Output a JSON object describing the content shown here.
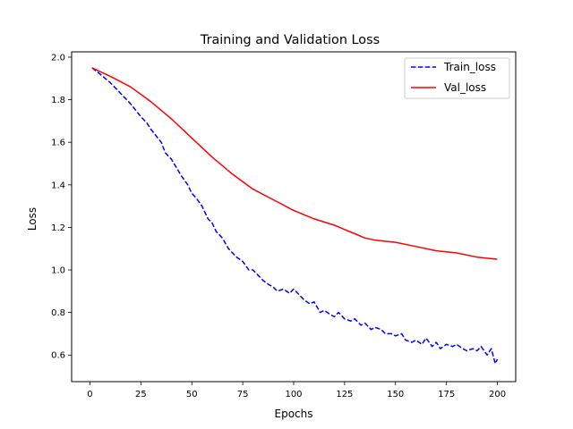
{
  "chart_data": {
    "type": "line",
    "title": "Training and Validation Loss",
    "xlabel": "Epochs",
    "ylabel": "Loss",
    "xlim": [
      -9,
      209
    ],
    "ylim": [
      0.475,
      2.025
    ],
    "xticks": [
      0,
      25,
      50,
      75,
      100,
      125,
      150,
      175,
      200
    ],
    "yticks": [
      0.6,
      0.8,
      1.0,
      1.2,
      1.4,
      1.6,
      1.8,
      2.0
    ],
    "xtick_labels": [
      "0",
      "25",
      "50",
      "75",
      "100",
      "125",
      "150",
      "175",
      "200"
    ],
    "ytick_labels": [
      "0.6",
      "0.8",
      "1.0",
      "1.2",
      "1.4",
      "1.6",
      "1.8",
      "2.0"
    ],
    "grid": false,
    "legend_position": "top-right",
    "series": [
      {
        "name": "Train_loss",
        "color": "#0000ff",
        "style": "dashed",
        "x": [
          1,
          5,
          10,
          15,
          20,
          25,
          28,
          30,
          35,
          37,
          40,
          45,
          48,
          50,
          52,
          55,
          58,
          60,
          62,
          65,
          68,
          70,
          72,
          75,
          78,
          80,
          85,
          88,
          90,
          92,
          95,
          98,
          100,
          105,
          108,
          110,
          113,
          115,
          118,
          120,
          122,
          125,
          128,
          130,
          133,
          135,
          138,
          140,
          143,
          145,
          148,
          150,
          153,
          155,
          158,
          160,
          163,
          165,
          168,
          170,
          172,
          175,
          178,
          180,
          183,
          185,
          188,
          190,
          192,
          195,
          197,
          199,
          200
        ],
        "y": [
          1.95,
          1.92,
          1.88,
          1.83,
          1.78,
          1.72,
          1.69,
          1.66,
          1.6,
          1.55,
          1.52,
          1.44,
          1.4,
          1.36,
          1.34,
          1.3,
          1.24,
          1.22,
          1.18,
          1.15,
          1.1,
          1.08,
          1.06,
          1.04,
          1.0,
          1.0,
          0.95,
          0.93,
          0.92,
          0.9,
          0.91,
          0.89,
          0.91,
          0.86,
          0.84,
          0.85,
          0.8,
          0.81,
          0.79,
          0.78,
          0.8,
          0.77,
          0.76,
          0.77,
          0.74,
          0.75,
          0.72,
          0.73,
          0.72,
          0.7,
          0.7,
          0.69,
          0.7,
          0.67,
          0.66,
          0.67,
          0.65,
          0.68,
          0.64,
          0.66,
          0.63,
          0.65,
          0.64,
          0.65,
          0.63,
          0.62,
          0.63,
          0.62,
          0.64,
          0.6,
          0.63,
          0.56,
          0.58
        ]
      },
      {
        "name": "Val_loss",
        "color": "#ff0000",
        "style": "solid",
        "x": [
          1,
          10,
          20,
          30,
          40,
          50,
          60,
          70,
          80,
          90,
          100,
          110,
          120,
          130,
          135,
          140,
          150,
          160,
          170,
          180,
          190,
          200
        ],
        "y": [
          1.95,
          1.91,
          1.86,
          1.79,
          1.71,
          1.62,
          1.53,
          1.45,
          1.38,
          1.33,
          1.28,
          1.24,
          1.21,
          1.17,
          1.15,
          1.14,
          1.13,
          1.11,
          1.09,
          1.08,
          1.06,
          1.05
        ]
      }
    ]
  }
}
